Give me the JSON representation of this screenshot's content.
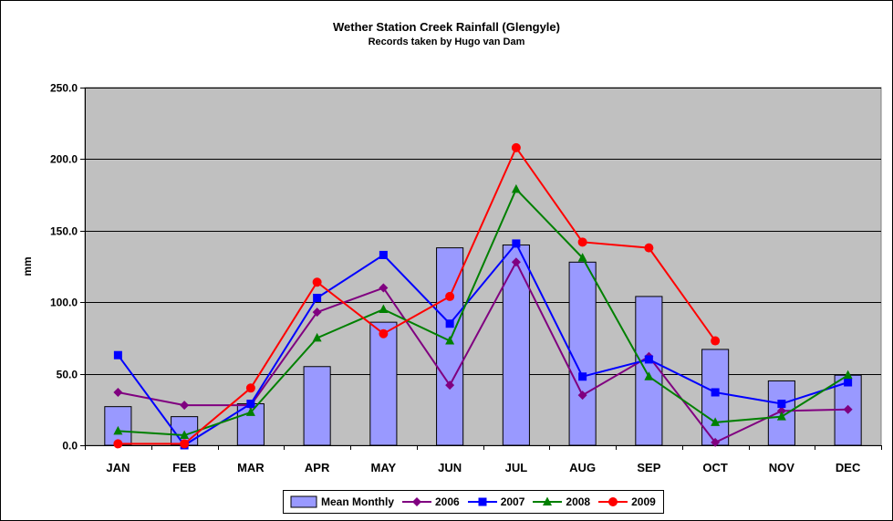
{
  "chart_data": {
    "type": "bar",
    "title": "Wether Station Creek Rainfall (Glengyle)",
    "subtitle": "Records taken by Hugo van Dam",
    "xlabel": "",
    "ylabel": "mm",
    "ylim": [
      0,
      250
    ],
    "ytick_step": 50,
    "ytick_labels": [
      "0.0",
      "50.0",
      "100.0",
      "150.0",
      "200.0",
      "250.0"
    ],
    "grid": true,
    "plot_background": "#c0c0c0",
    "legend_position": "bottom",
    "categories": [
      "JAN",
      "FEB",
      "MAR",
      "APR",
      "MAY",
      "JUN",
      "JUL",
      "AUG",
      "SEP",
      "OCT",
      "NOV",
      "DEC"
    ],
    "series": [
      {
        "name": "Mean Monthly",
        "kind": "bar",
        "color": "#9999ff",
        "marker": "rect",
        "values": [
          27,
          20,
          29,
          55,
          86,
          138,
          140,
          128,
          104,
          67,
          45,
          49
        ]
      },
      {
        "name": "2006",
        "kind": "line",
        "color": "#800080",
        "marker": "diamond",
        "values": [
          37,
          28,
          28,
          93,
          110,
          42,
          128,
          35,
          62,
          2,
          24,
          25
        ]
      },
      {
        "name": "2007",
        "kind": "line",
        "color": "#0000ff",
        "marker": "square",
        "values": [
          63,
          0,
          29,
          103,
          133,
          85,
          141,
          48,
          60,
          37,
          29,
          44
        ]
      },
      {
        "name": "2008",
        "kind": "line",
        "color": "#008000",
        "marker": "triangle",
        "values": [
          10,
          7,
          23,
          75,
          95,
          73,
          179,
          131,
          48,
          16,
          20,
          49
        ]
      },
      {
        "name": "2009",
        "kind": "line",
        "color": "#ff0000",
        "marker": "circle",
        "values": [
          1,
          1,
          40,
          114,
          78,
          104,
          208,
          142,
          138,
          73,
          null,
          null
        ]
      }
    ]
  }
}
